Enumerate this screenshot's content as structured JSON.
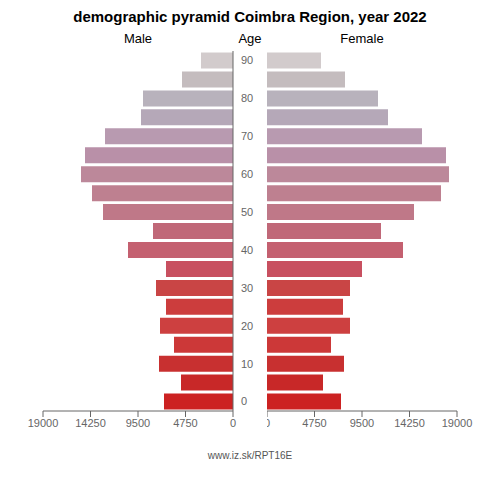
{
  "chart_data": {
    "type": "bar",
    "orientation": "horizontal",
    "title": "demographic pyramid Coimbra Region, year 2022",
    "ylabel": "Age",
    "categories": [
      "0",
      null,
      "10",
      null,
      "20",
      null,
      "30",
      null,
      "40",
      null,
      "50",
      null,
      "60",
      null,
      "70",
      null,
      "80",
      null,
      "90"
    ],
    "series": [
      {
        "name": "Male",
        "values": [
          6900,
          5200,
          7400,
          5900,
          7300,
          6700,
          7700,
          6700,
          10500,
          8000,
          13000,
          14100,
          15200,
          14800,
          12800,
          9200,
          9000,
          5100,
          3200
        ]
      },
      {
        "name": "Female",
        "values": [
          7400,
          5600,
          7700,
          6400,
          8300,
          7600,
          8300,
          9500,
          13600,
          11400,
          14700,
          17400,
          18200,
          17900,
          15500,
          12100,
          11100,
          7800,
          5400
        ]
      }
    ],
    "colors": [
      "#cc2222",
      "#c82828",
      "#c83030",
      "#cc3838",
      "#cd4040",
      "#cc3d3d",
      "#c94545",
      "#c85060",
      "#c46070",
      "#c06878",
      "#bf7888",
      "#be8090",
      "#bc889a",
      "#b990a8",
      "#b89ab0",
      "#b5a8b8",
      "#b8b2bc",
      "#c4bcbe",
      "#d2cbcc"
    ],
    "xlim": [
      0,
      19000
    ],
    "xticks": [
      0,
      4750,
      9500,
      14250,
      19000
    ],
    "grid": false,
    "annotation": "www.iz.sk/RPT16E"
  }
}
